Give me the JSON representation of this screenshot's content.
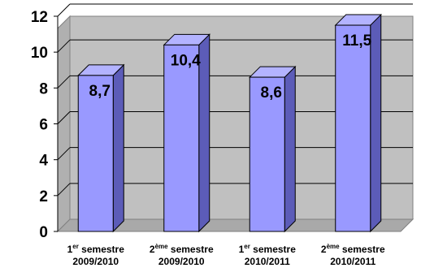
{
  "chart_data": {
    "type": "bar",
    "title": "",
    "xlabel": "",
    "ylabel": "",
    "ylim": [
      0,
      12
    ],
    "yticks": [
      "0",
      "2",
      "4",
      "6",
      "8",
      "10",
      "12"
    ],
    "grid": true,
    "legend": "none",
    "categories": [
      {
        "prefix": "1",
        "sup": "er",
        "rest": " semestre",
        "year": "2009/2010"
      },
      {
        "prefix": "2",
        "sup": "ème",
        "rest": " semestre",
        "year": "2009/2010"
      },
      {
        "prefix": "1",
        "sup": "er",
        "rest": " semestre",
        "year": "2010/2011"
      },
      {
        "prefix": "2",
        "sup": "ème",
        "rest": " semestre",
        "year": "2010/2011"
      }
    ],
    "values": [
      8.7,
      10.4,
      8.6,
      11.5
    ],
    "data_labels": [
      "8,7",
      "10,4",
      "8,6",
      "11,5"
    ],
    "colors": {
      "bar_front": "#9999ff",
      "bar_side": "#5c5cb8",
      "bar_top": "#b3b3ff",
      "wall": "#c0c0c0",
      "floor": "#a9a9a9"
    }
  }
}
